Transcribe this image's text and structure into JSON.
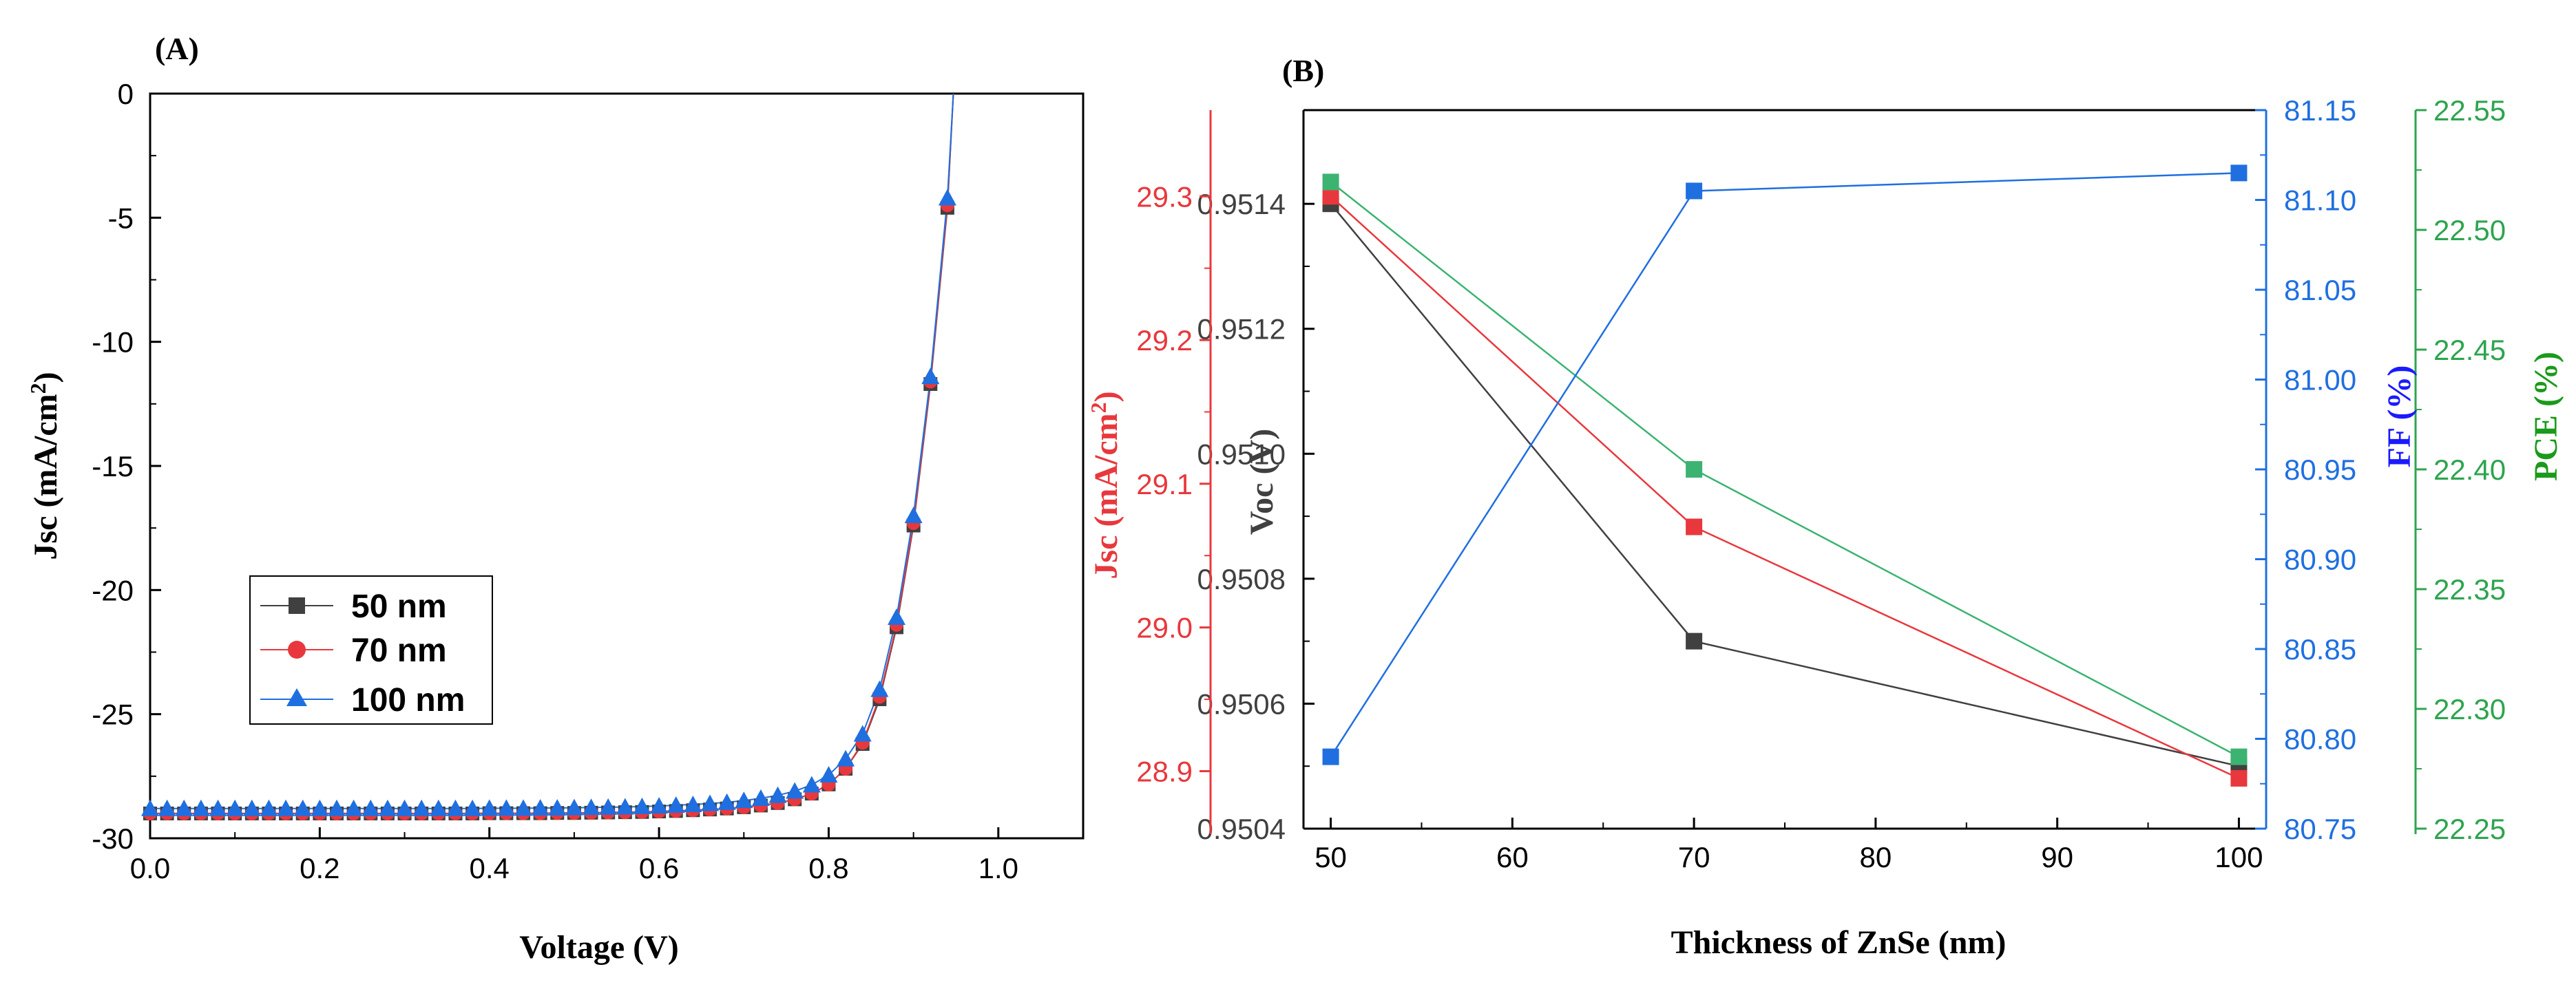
{
  "figure": {
    "panels": [
      "(A)",
      "(B)"
    ]
  },
  "chart_data": [
    {
      "panel": "(A)",
      "type": "line",
      "xlabel": "Voltage (V)",
      "ylabel": "Jsc (mA/cm",
      "ylabel_sup": "2",
      "ylabel_tail": ")",
      "xlim": [
        0,
        1.1
      ],
      "ylim": [
        -30,
        0
      ],
      "xticks": [
        0.0,
        0.2,
        0.4,
        0.6,
        0.8,
        1.0
      ],
      "xtick_labels": [
        "0.0",
        "0.2",
        "0.4",
        "0.6",
        "0.8",
        "1.0"
      ],
      "yticks": [
        0,
        -5,
        -10,
        -15,
        -20,
        -25,
        -30
      ],
      "ytick_labels": [
        "0",
        "-5",
        "-10",
        "-15",
        "-20",
        "-25",
        "-30"
      ],
      "legend_position": "lower-left",
      "x": [
        0.0,
        0.02,
        0.04,
        0.06,
        0.08,
        0.1,
        0.12,
        0.14,
        0.16,
        0.18,
        0.2,
        0.22,
        0.24,
        0.26,
        0.28,
        0.3,
        0.32,
        0.34,
        0.36,
        0.38,
        0.4,
        0.42,
        0.44,
        0.46,
        0.48,
        0.5,
        0.52,
        0.54,
        0.56,
        0.58,
        0.6,
        0.62,
        0.64,
        0.66,
        0.68,
        0.7,
        0.72,
        0.74,
        0.76,
        0.78,
        0.8,
        0.82,
        0.84,
        0.86,
        0.88,
        0.9,
        0.92,
        0.94
      ],
      "series": [
        {
          "name": "50 nm",
          "color": "#404040",
          "marker": "square",
          "values": [
            -29.0,
            -29.0,
            -29.0,
            -29.0,
            -29.0,
            -29.0,
            -29.0,
            -29.0,
            -29.0,
            -29.0,
            -29.0,
            -29.0,
            -29.0,
            -29.0,
            -29.0,
            -29.0,
            -29.0,
            -29.0,
            -29.0,
            -29.0,
            -28.99,
            -28.99,
            -28.99,
            -28.99,
            -28.98,
            -28.98,
            -28.97,
            -28.96,
            -28.95,
            -28.94,
            -28.92,
            -28.9,
            -28.87,
            -28.84,
            -28.8,
            -28.75,
            -28.68,
            -28.58,
            -28.43,
            -28.2,
            -27.83,
            -27.2,
            -26.2,
            -24.4,
            -21.5,
            -17.4,
            -11.7,
            -4.6
          ]
        },
        {
          "name": "70 nm",
          "color": "#e8383d",
          "marker": "circle",
          "values": [
            -29.0,
            -29.0,
            -29.0,
            -29.0,
            -29.0,
            -29.0,
            -29.0,
            -29.0,
            -29.0,
            -29.0,
            -29.0,
            -29.0,
            -29.0,
            -29.0,
            -29.0,
            -29.0,
            -29.0,
            -29.0,
            -29.0,
            -29.0,
            -28.99,
            -28.99,
            -28.99,
            -28.99,
            -28.98,
            -28.98,
            -28.97,
            -28.96,
            -28.95,
            -28.94,
            -28.92,
            -28.9,
            -28.87,
            -28.84,
            -28.8,
            -28.75,
            -28.68,
            -28.58,
            -28.43,
            -28.2,
            -27.83,
            -27.2,
            -26.15,
            -24.3,
            -21.4,
            -17.3,
            -11.6,
            -4.5
          ]
        },
        {
          "name": "100 nm",
          "color": "#1f6fe0",
          "marker": "triangle",
          "values": [
            -28.8,
            -28.8,
            -28.8,
            -28.8,
            -28.8,
            -28.8,
            -28.8,
            -28.8,
            -28.8,
            -28.8,
            -28.8,
            -28.8,
            -28.8,
            -28.8,
            -28.8,
            -28.8,
            -28.8,
            -28.8,
            -28.8,
            -28.8,
            -28.79,
            -28.79,
            -28.79,
            -28.78,
            -28.78,
            -28.77,
            -28.76,
            -28.75,
            -28.74,
            -28.72,
            -28.7,
            -28.67,
            -28.64,
            -28.6,
            -28.55,
            -28.48,
            -28.39,
            -28.27,
            -28.1,
            -27.85,
            -27.45,
            -26.8,
            -25.8,
            -24.0,
            -21.1,
            -17.0,
            -11.4,
            -4.2
          ]
        }
      ]
    },
    {
      "panel": "(B)",
      "type": "line",
      "xlabel": "Thickness of ZnSe (nm)",
      "x": [
        50,
        70,
        100
      ],
      "xlim": [
        48.5,
        101.5
      ],
      "xticks": [
        50,
        60,
        70,
        80,
        90,
        100
      ],
      "xtick_labels": [
        "50",
        "60",
        "70",
        "80",
        "90",
        "100"
      ],
      "axes": [
        {
          "id": "voc",
          "label": "Voc (V)",
          "color": "#404040",
          "side": "left-inner",
          "ylim": [
            0.9504,
            0.95155
          ],
          "ticks": [
            0.9504,
            0.9506,
            0.9508,
            0.951,
            0.9512,
            0.9514
          ],
          "tick_labels": [
            "0.9504",
            "0.9506",
            "0.9508",
            "0.9510",
            "0.9512",
            "0.9514"
          ]
        },
        {
          "id": "jsc",
          "label": "Jsc (mA/cm",
          "label_sup": "2",
          "label_tail": ")",
          "color": "#e8383d",
          "side": "left-outer",
          "ylim": [
            28.86,
            29.36
          ],
          "ticks": [
            28.9,
            29.0,
            29.1,
            29.2,
            29.3
          ],
          "tick_labels": [
            "28.9",
            "29.0",
            "29.1",
            "29.2",
            "29.3"
          ]
        },
        {
          "id": "ff",
          "label": "FF (%)",
          "color": "#1f6fe0",
          "title_color": "#1a1aff",
          "side": "right-inner",
          "ylim": [
            80.75,
            81.15
          ],
          "ticks": [
            80.75,
            80.8,
            80.85,
            80.9,
            80.95,
            81.0,
            81.05,
            81.1,
            81.15
          ],
          "tick_labels": [
            "80.75",
            "80.80",
            "80.85",
            "80.90",
            "80.95",
            "81.00",
            "81.05",
            "81.10",
            "81.15"
          ]
        },
        {
          "id": "pce",
          "label": "PCE (%)",
          "color": "#2ea44f",
          "title_color": "#1a9a1a",
          "side": "right-outer",
          "ylim": [
            22.25,
            22.55
          ],
          "ticks": [
            22.25,
            22.3,
            22.35,
            22.4,
            22.45,
            22.5,
            22.55
          ],
          "tick_labels": [
            "22.25",
            "22.30",
            "22.35",
            "22.40",
            "22.45",
            "22.50",
            "22.55"
          ]
        }
      ],
      "series": [
        {
          "name": "Voc",
          "axis": "voc",
          "color": "#404040",
          "marker": "square",
          "values": [
            0.9514,
            0.9507,
            0.9505
          ]
        },
        {
          "name": "Jsc",
          "axis": "jsc",
          "color": "#e8383d",
          "marker": "square",
          "values": [
            29.3,
            29.07,
            28.895
          ]
        },
        {
          "name": "PCE",
          "axis": "pce",
          "color": "#3cb371",
          "marker": "square",
          "values": [
            22.52,
            22.4,
            22.28
          ]
        },
        {
          "name": "FF",
          "axis": "ff",
          "color": "#1f6fe0",
          "marker": "square",
          "values": [
            80.79,
            81.105,
            81.115
          ]
        }
      ]
    }
  ]
}
